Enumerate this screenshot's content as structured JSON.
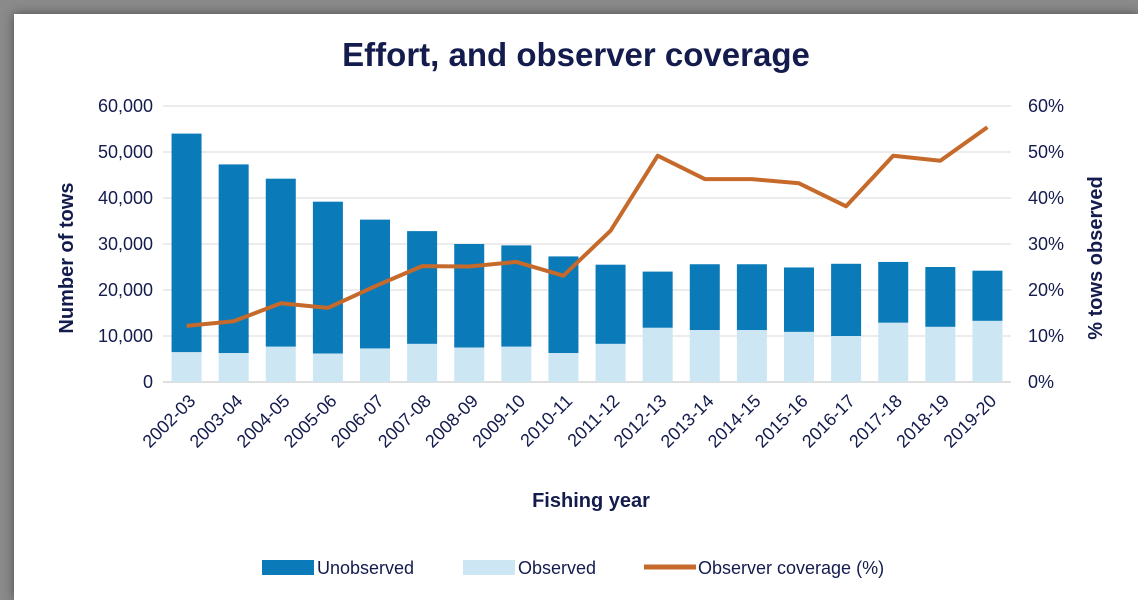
{
  "chart_data": {
    "type": "bar",
    "title": "Effort, and observer coverage",
    "xlabel": "Fishing year",
    "ylabel": "Number of tows",
    "y2label": "% tows observed",
    "ylim": [
      0,
      60000
    ],
    "y2lim": [
      0,
      60
    ],
    "yticks": [
      "0",
      "10,000",
      "20,000",
      "30,000",
      "40,000",
      "50,000",
      "60,000"
    ],
    "y2ticks": [
      "0%",
      "10%",
      "20%",
      "30%",
      "40%",
      "50%",
      "60%"
    ],
    "grid": true,
    "stacked": true,
    "legend_position": "bottom",
    "categories": [
      "2002-03",
      "2003-04",
      "2004-05",
      "2005-06",
      "2006-07",
      "2007-08",
      "2008-09",
      "2009-10",
      "2010-11",
      "2011-12",
      "2012-13",
      "2013-14",
      "2014-15",
      "2015-16",
      "2016-17",
      "2017-18",
      "2018-19",
      "2019-20"
    ],
    "series": [
      {
        "name": "Unobserved",
        "type": "bar",
        "color": "#0a7ab8",
        "values": [
          47500,
          41000,
          36500,
          33000,
          28000,
          24500,
          22500,
          22000,
          21000,
          17200,
          12200,
          14300,
          14300,
          14000,
          15700,
          13200,
          13000,
          10900
        ]
      },
      {
        "name": "Observed",
        "type": "bar",
        "color": "#cde6f3",
        "values": [
          6500,
          6300,
          7700,
          6200,
          7300,
          8300,
          7500,
          7700,
          6300,
          8300,
          11800,
          11300,
          11300,
          10900,
          10000,
          12900,
          12000,
          13300
        ]
      },
      {
        "name": "Observer coverage (%)",
        "type": "line",
        "axis": "secondary",
        "color": "#c66a2b",
        "values": [
          12.2,
          13.2,
          17.1,
          16.1,
          20.8,
          25.2,
          25.1,
          26.1,
          23.1,
          32.9,
          49.2,
          44.1,
          44.1,
          43.2,
          38.2,
          49.2,
          48.1,
          55.4
        ]
      }
    ]
  }
}
